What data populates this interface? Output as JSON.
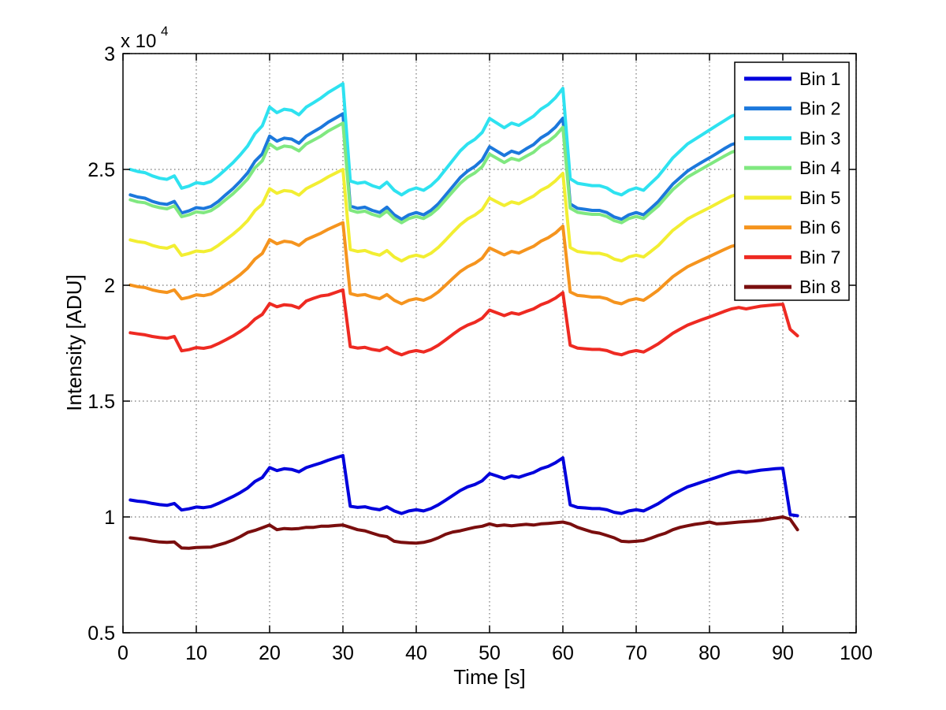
{
  "page": {
    "background": "#FFFFFF"
  },
  "chart_data": {
    "type": "line",
    "title": "",
    "xlabel": "Time [s]",
    "ylabel": "Intensity [ADU]",
    "y_axis_multiplier": {
      "base": "x 10",
      "exponent": "4"
    },
    "xlim": [
      0,
      100
    ],
    "ylim": [
      5000,
      30000
    ],
    "grid": true,
    "axis_color": "#000000",
    "grid_color": "#757575",
    "legend": {
      "position": "northeast",
      "background": "#FFFFFF",
      "border_color": "#000000"
    },
    "xticks": {
      "values": [
        0,
        10,
        20,
        30,
        40,
        50,
        60,
        70,
        80,
        90,
        100
      ],
      "labels": [
        "0",
        "10",
        "20",
        "30",
        "40",
        "50",
        "60",
        "70",
        "80",
        "90",
        "100"
      ]
    },
    "yticks": {
      "values": [
        5000,
        10000,
        15000,
        20000,
        25000,
        30000
      ],
      "labels": [
        "0.5",
        "1",
        "1.5",
        "2",
        "2.5",
        "3"
      ]
    },
    "x": [
      1,
      2,
      3,
      4,
      5,
      6,
      7,
      8,
      9,
      10,
      11,
      12,
      13,
      14,
      15,
      16,
      17,
      18,
      19,
      20,
      21,
      22,
      23,
      24,
      25,
      26,
      27,
      28,
      29,
      30,
      31,
      32,
      33,
      34,
      35,
      36,
      37,
      38,
      39,
      40,
      41,
      42,
      43,
      44,
      45,
      46,
      47,
      48,
      49,
      50,
      51,
      52,
      53,
      54,
      55,
      56,
      57,
      58,
      59,
      60,
      61,
      62,
      63,
      64,
      65,
      66,
      67,
      68,
      69,
      70,
      71,
      72,
      73,
      74,
      75,
      76,
      77,
      78,
      79,
      80,
      81,
      82,
      83,
      84,
      85,
      86,
      87,
      88,
      89,
      90,
      91,
      92
    ],
    "series": [
      {
        "name": "Bin 1",
        "color": "#0000DC",
        "values": [
          10730,
          10680,
          10650,
          10580,
          10530,
          10500,
          10580,
          10300,
          10350,
          10430,
          10400,
          10450,
          10580,
          10730,
          10880,
          11050,
          11250,
          11530,
          11700,
          12130,
          12000,
          12080,
          12050,
          11950,
          12130,
          12230,
          12330,
          12450,
          12550,
          12650,
          10460,
          10410,
          10440,
          10360,
          10310,
          10440,
          10260,
          10150,
          10260,
          10310,
          10260,
          10360,
          10520,
          10720,
          10930,
          11140,
          11300,
          11400,
          11560,
          11870,
          11770,
          11660,
          11770,
          11710,
          11820,
          11920,
          12080,
          12180,
          12340,
          12550,
          10520,
          10410,
          10390,
          10360,
          10360,
          10310,
          10200,
          10150,
          10260,
          10310,
          10260,
          10410,
          10570,
          10780,
          10980,
          11140,
          11300,
          11400,
          11510,
          11610,
          11710,
          11820,
          11920,
          11970,
          11920,
          11970,
          12020,
          12050,
          12080,
          12100,
          10100,
          10050
        ]
      },
      {
        "name": "Bin 2",
        "color": "#1C78DC",
        "values": [
          23900,
          23810,
          23760,
          23620,
          23530,
          23490,
          23620,
          23120,
          23210,
          23350,
          23310,
          23400,
          23620,
          23900,
          24170,
          24490,
          24850,
          25350,
          25670,
          26440,
          26220,
          26350,
          26310,
          26130,
          26440,
          26630,
          26810,
          27040,
          27220,
          27400,
          23420,
          23320,
          23370,
          23230,
          23140,
          23370,
          23040,
          22850,
          23040,
          23140,
          23040,
          23230,
          23510,
          23890,
          24270,
          24650,
          24930,
          25130,
          25410,
          25980,
          25790,
          25600,
          25790,
          25690,
          25890,
          26070,
          26360,
          26550,
          26830,
          27210,
          23510,
          23320,
          23280,
          23230,
          23230,
          23140,
          22950,
          22850,
          23040,
          23140,
          23040,
          23320,
          23610,
          23990,
          24370,
          24650,
          24930,
          25130,
          25320,
          25500,
          25690,
          25890,
          26070,
          26170,
          26070,
          26170,
          26260,
          26310,
          26350,
          26400,
          23530,
          23400
        ]
      },
      {
        "name": "Bin 3",
        "color": "#2EE2F0",
        "values": [
          25000,
          24910,
          24860,
          24720,
          24620,
          24570,
          24720,
          24190,
          24280,
          24430,
          24380,
          24480,
          24720,
          25000,
          25290,
          25630,
          26010,
          26540,
          26880,
          27690,
          27450,
          27600,
          27550,
          27360,
          27690,
          27880,
          28080,
          28320,
          28510,
          28700,
          24500,
          24400,
          24450,
          24300,
          24200,
          24450,
          24100,
          23900,
          24100,
          24200,
          24100,
          24300,
          24600,
          25000,
          25400,
          25800,
          26100,
          26300,
          26600,
          27200,
          27000,
          26800,
          27000,
          26900,
          27100,
          27300,
          27600,
          27800,
          28100,
          28500,
          24600,
          24400,
          24350,
          24300,
          24300,
          24200,
          24000,
          23900,
          24100,
          24200,
          24100,
          24400,
          24700,
          25100,
          25500,
          25800,
          26100,
          26300,
          26500,
          26700,
          26900,
          27100,
          27300,
          27400,
          27300,
          27400,
          27500,
          27550,
          27600,
          27640,
          24620,
          24480
        ]
      },
      {
        "name": "Bin 4",
        "color": "#80E880",
        "values": [
          23690,
          23600,
          23560,
          23430,
          23350,
          23300,
          23430,
          22960,
          23040,
          23170,
          23130,
          23220,
          23430,
          23690,
          23950,
          24250,
          24590,
          25070,
          25370,
          26100,
          25880,
          26010,
          25970,
          25800,
          26100,
          26270,
          26440,
          26660,
          26830,
          27000,
          23240,
          23150,
          23200,
          23060,
          22970,
          23200,
          22880,
          22700,
          22880,
          22970,
          22880,
          23060,
          23330,
          23690,
          24050,
          24400,
          24670,
          24850,
          25120,
          25660,
          25480,
          25300,
          25480,
          25390,
          25570,
          25740,
          26020,
          26200,
          26460,
          26820,
          23330,
          23150,
          23100,
          23060,
          23060,
          22970,
          22790,
          22700,
          22880,
          22970,
          22880,
          23150,
          23420,
          23780,
          24130,
          24400,
          24670,
          24850,
          25030,
          25210,
          25390,
          25570,
          25740,
          25840,
          25740,
          25840,
          25930,
          25970,
          26010,
          26050,
          23350,
          23220
        ]
      },
      {
        "name": "Bin 5",
        "color": "#F2EE32",
        "values": [
          21960,
          21880,
          21840,
          21720,
          21640,
          21600,
          21720,
          21290,
          21370,
          21480,
          21450,
          21520,
          21720,
          21960,
          22200,
          22470,
          22790,
          23220,
          23500,
          24170,
          23970,
          24090,
          24050,
          23890,
          24170,
          24330,
          24490,
          24680,
          24840,
          25000,
          21540,
          21460,
          21500,
          21380,
          21300,
          21500,
          21220,
          21050,
          21220,
          21300,
          21220,
          21380,
          21630,
          21950,
          22290,
          22610,
          22860,
          23030,
          23270,
          23770,
          23600,
          23440,
          23600,
          23520,
          23690,
          23850,
          24100,
          24260,
          24510,
          24830,
          21630,
          21460,
          21420,
          21380,
          21380,
          21300,
          21130,
          21050,
          21220,
          21300,
          21220,
          21460,
          21710,
          22040,
          22370,
          22610,
          22860,
          23030,
          23190,
          23350,
          23520,
          23690,
          23850,
          23930,
          23850,
          23930,
          24010,
          24050,
          24090,
          24130,
          21640,
          21520
        ]
      },
      {
        "name": "Bin 6",
        "color": "#F5941E",
        "values": [
          20010,
          19940,
          19900,
          19800,
          19730,
          19690,
          19800,
          19410,
          19480,
          19590,
          19550,
          19620,
          19800,
          20010,
          20220,
          20460,
          20740,
          21130,
          21370,
          21970,
          21790,
          21900,
          21860,
          21720,
          21970,
          22110,
          22250,
          22420,
          22560,
          22700,
          19640,
          19560,
          19600,
          19490,
          19420,
          19600,
          19350,
          19200,
          19350,
          19420,
          19350,
          19490,
          19710,
          20000,
          20300,
          20590,
          20800,
          20950,
          21170,
          21610,
          21460,
          21310,
          21460,
          21390,
          21540,
          21680,
          21900,
          22050,
          22260,
          22550,
          19710,
          19560,
          19530,
          19490,
          19490,
          19420,
          19270,
          19200,
          19350,
          19420,
          19350,
          19560,
          19790,
          20080,
          20370,
          20590,
          20800,
          20950,
          21100,
          21240,
          21390,
          21540,
          21680,
          21750,
          21680,
          21750,
          21830,
          21860,
          21900,
          21930,
          19730,
          19620
        ]
      },
      {
        "name": "Bin 7",
        "color": "#EE2A22",
        "values": [
          17950,
          17900,
          17860,
          17790,
          17740,
          17710,
          17790,
          17170,
          17220,
          17310,
          17280,
          17340,
          17480,
          17640,
          17810,
          18010,
          18230,
          18540,
          18740,
          19210,
          19070,
          19160,
          19130,
          19020,
          19320,
          19440,
          19540,
          19580,
          19690,
          19800,
          17350,
          17290,
          17320,
          17230,
          17180,
          17320,
          17120,
          17000,
          17120,
          17180,
          17120,
          17230,
          17410,
          17640,
          17880,
          18110,
          18280,
          18400,
          18580,
          18930,
          18810,
          18690,
          18810,
          18750,
          18870,
          18980,
          19160,
          19280,
          19450,
          19680,
          17410,
          17290,
          17260,
          17230,
          17230,
          17180,
          17060,
          17000,
          17120,
          17180,
          17120,
          17290,
          17470,
          17700,
          17930,
          18110,
          18280,
          18400,
          18520,
          18630,
          18750,
          18870,
          18980,
          19040,
          18980,
          19040,
          19100,
          19130,
          19160,
          19180,
          18100,
          17820
        ]
      },
      {
        "name": "Bin 8",
        "color": "#7A0E0E",
        "values": [
          9100,
          9060,
          9020,
          8960,
          8920,
          8900,
          8920,
          8660,
          8650,
          8680,
          8690,
          8700,
          8790,
          8880,
          9000,
          9150,
          9330,
          9420,
          9530,
          9650,
          9450,
          9500,
          9480,
          9500,
          9550,
          9550,
          9600,
          9600,
          9630,
          9650,
          9550,
          9450,
          9400,
          9300,
          9200,
          9150,
          8950,
          8900,
          8880,
          8870,
          8900,
          8980,
          9100,
          9250,
          9350,
          9400,
          9480,
          9550,
          9600,
          9700,
          9620,
          9650,
          9620,
          9650,
          9680,
          9650,
          9700,
          9720,
          9750,
          9780,
          9700,
          9550,
          9450,
          9350,
          9300,
          9200,
          9100,
          8950,
          8930,
          8950,
          8980,
          9080,
          9200,
          9300,
          9450,
          9550,
          9620,
          9680,
          9720,
          9780,
          9700,
          9720,
          9750,
          9780,
          9800,
          9820,
          9850,
          9900,
          9950,
          10000,
          9900,
          9450
        ]
      }
    ]
  }
}
